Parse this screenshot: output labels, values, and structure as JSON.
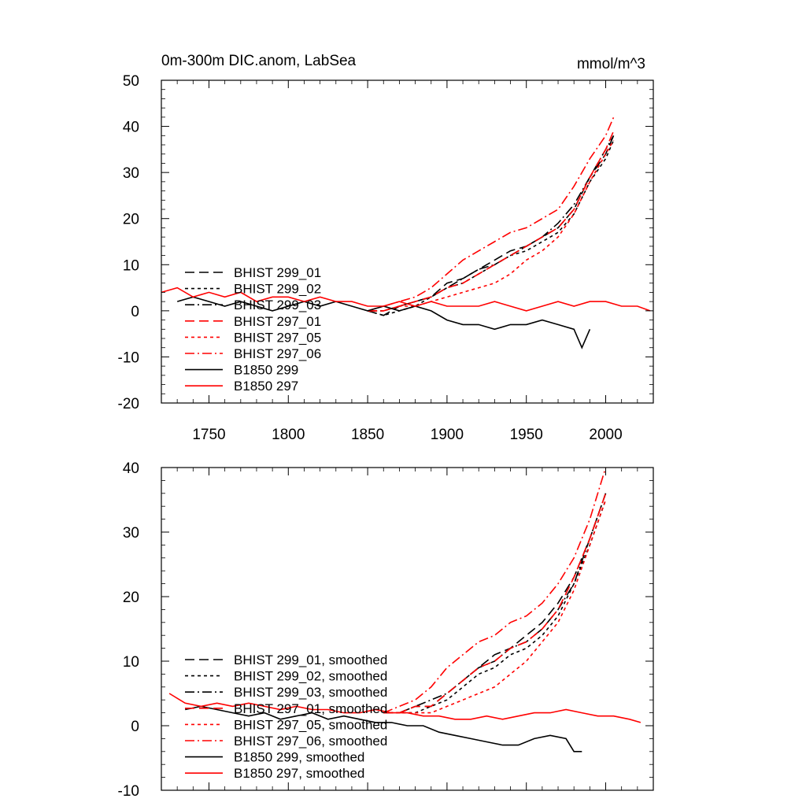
{
  "chart_data": [
    {
      "type": "line",
      "title": "0m-300m DIC.anom, LabSea",
      "units": "mmol/m^3",
      "xlim": [
        1720,
        2030
      ],
      "ylim": [
        -20,
        50
      ],
      "xticks": [
        {
          "v": 1750,
          "label": "1750"
        },
        {
          "v": 1800,
          "label": "1800"
        },
        {
          "v": 1850,
          "label": "1850"
        },
        {
          "v": 1900,
          "label": "1900"
        },
        {
          "v": 1950,
          "label": "1950"
        },
        {
          "v": 2000,
          "label": "2000"
        }
      ],
      "yticks": [
        {
          "v": -20,
          "label": "-20"
        },
        {
          "v": -10,
          "label": "-10"
        },
        {
          "v": 0,
          "label": "0"
        },
        {
          "v": 10,
          "label": "10"
        },
        {
          "v": 20,
          "label": "20"
        },
        {
          "v": 30,
          "label": "30"
        },
        {
          "v": 40,
          "label": "40"
        },
        {
          "v": 50,
          "label": "50"
        }
      ],
      "legend_position": "lower-left",
      "series": [
        {
          "name": "BHIST 299_01",
          "color": "#000000",
          "dash": "long-dash",
          "x": [
            1850,
            1860,
            1870,
            1880,
            1890,
            1900,
            1910,
            1920,
            1930,
            1940,
            1950,
            1960,
            1970,
            1980,
            1990,
            2000,
            2005
          ],
          "y": [
            0,
            -1,
            1,
            2,
            3,
            6,
            7,
            9,
            11,
            13,
            14,
            16,
            18,
            22,
            29,
            34,
            38
          ]
        },
        {
          "name": "BHIST 299_02",
          "color": "#000000",
          "dash": "short-dash",
          "x": [
            1850,
            1860,
            1870,
            1880,
            1890,
            1900,
            1910,
            1920,
            1930,
            1940,
            1950,
            1960,
            1970,
            1980,
            1990,
            2000,
            2005
          ],
          "y": [
            0,
            -1,
            0,
            1,
            3,
            5,
            6,
            8,
            10,
            12,
            13,
            15,
            17,
            21,
            28,
            33,
            37
          ]
        },
        {
          "name": "BHIST 299_03",
          "color": "#000000",
          "dash": "dash-dot",
          "x": [
            1850,
            1860,
            1870,
            1880,
            1890,
            1900,
            1910,
            1920,
            1930,
            1940,
            1950,
            1960,
            1970,
            1980,
            1990,
            2000,
            2005
          ],
          "y": [
            0,
            0,
            1,
            2,
            3,
            5,
            7,
            9,
            10,
            12,
            14,
            16,
            19,
            23,
            29,
            35,
            38
          ]
        },
        {
          "name": "BHIST 297_01",
          "color": "#ff0000",
          "dash": "long-dash",
          "x": [
            1850,
            1860,
            1870,
            1880,
            1890,
            1900,
            1910,
            1920,
            1930,
            1940,
            1950,
            1960,
            1970,
            1980,
            1990,
            2000,
            2005
          ],
          "y": [
            0,
            0,
            1,
            2,
            3,
            5,
            6,
            8,
            10,
            12,
            14,
            16,
            18,
            22,
            29,
            35,
            39
          ]
        },
        {
          "name": "BHIST 297_05",
          "color": "#ff0000",
          "dash": "short-dash",
          "x": [
            1850,
            1860,
            1870,
            1880,
            1890,
            1900,
            1910,
            1920,
            1930,
            1940,
            1950,
            1960,
            1970,
            1980,
            1990,
            2000,
            2005
          ],
          "y": [
            0,
            0,
            1,
            1,
            2,
            3,
            4,
            5,
            6,
            8,
            11,
            13,
            16,
            21,
            28,
            34,
            37
          ]
        },
        {
          "name": "BHIST 297_06",
          "color": "#ff0000",
          "dash": "dash-dot",
          "x": [
            1850,
            1860,
            1870,
            1880,
            1890,
            1900,
            1910,
            1920,
            1930,
            1940,
            1950,
            1960,
            1970,
            1980,
            1990,
            2000,
            2005
          ],
          "y": [
            0,
            1,
            2,
            3,
            5,
            8,
            11,
            13,
            15,
            17,
            18,
            20,
            22,
            27,
            33,
            38,
            42
          ]
        },
        {
          "name": "B1850 299",
          "color": "#000000",
          "dash": "solid",
          "x": [
            1730,
            1740,
            1750,
            1760,
            1770,
            1780,
            1790,
            1800,
            1810,
            1820,
            1830,
            1840,
            1850,
            1860,
            1870,
            1880,
            1890,
            1900,
            1910,
            1920,
            1930,
            1940,
            1950,
            1960,
            1970,
            1980,
            1985,
            1990
          ],
          "y": [
            2,
            3,
            2,
            1,
            2,
            1,
            0,
            1,
            2,
            1,
            2,
            1,
            0,
            1,
            0,
            1,
            0,
            -2,
            -3,
            -3,
            -4,
            -3,
            -3,
            -2,
            -3,
            -4,
            -8,
            -4
          ]
        },
        {
          "name": "B1850 297",
          "color": "#ff0000",
          "dash": "solid",
          "x": [
            1720,
            1730,
            1740,
            1750,
            1760,
            1770,
            1780,
            1790,
            1800,
            1810,
            1820,
            1830,
            1840,
            1850,
            1860,
            1870,
            1880,
            1890,
            1900,
            1910,
            1920,
            1930,
            1940,
            1950,
            1960,
            1970,
            1980,
            1990,
            2000,
            2010,
            2020,
            2028
          ],
          "y": [
            4,
            5,
            3,
            4,
            3,
            4,
            2,
            3,
            3,
            2,
            3,
            2,
            2,
            1,
            1,
            2,
            1,
            2,
            1,
            1,
            1,
            2,
            1,
            0,
            1,
            2,
            1,
            2,
            2,
            1,
            1,
            0
          ]
        }
      ]
    },
    {
      "type": "line",
      "xlim": [
        1720,
        2030
      ],
      "ylim": [
        -10,
        40
      ],
      "xticks": [
        {
          "v": 1750,
          "label": ""
        },
        {
          "v": 1800,
          "label": ""
        },
        {
          "v": 1850,
          "label": ""
        },
        {
          "v": 1900,
          "label": ""
        },
        {
          "v": 1950,
          "label": ""
        },
        {
          "v": 2000,
          "label": ""
        }
      ],
      "yticks": [
        {
          "v": -10,
          "label": "-10"
        },
        {
          "v": 0,
          "label": "0"
        },
        {
          "v": 10,
          "label": "10"
        },
        {
          "v": 20,
          "label": "20"
        },
        {
          "v": 30,
          "label": "30"
        },
        {
          "v": 40,
          "label": "40"
        }
      ],
      "legend_position": "lower-left",
      "series": [
        {
          "name": "BHIST 299_01, smoothed",
          "color": "#000000",
          "dash": "long-dash",
          "x": [
            1860,
            1870,
            1880,
            1890,
            1900,
            1910,
            1920,
            1930,
            1940,
            1950,
            1960,
            1970,
            1980,
            1990,
            2000
          ],
          "y": [
            2,
            2,
            3,
            3,
            5,
            7,
            9,
            11,
            12,
            14,
            16,
            19,
            23,
            29,
            36
          ]
        },
        {
          "name": "BHIST 299_02, smoothed",
          "color": "#000000",
          "dash": "short-dash",
          "x": [
            1860,
            1870,
            1880,
            1890,
            1900,
            1910,
            1920,
            1930,
            1940,
            1950,
            1960,
            1970,
            1980,
            1990,
            2000
          ],
          "y": [
            2,
            2,
            2,
            3,
            4,
            6,
            8,
            9,
            11,
            12,
            14,
            17,
            22,
            28,
            35
          ]
        },
        {
          "name": "BHIST 299_03, smoothed",
          "color": "#000000",
          "dash": "dash-dot",
          "x": [
            1860,
            1870,
            1880,
            1890,
            1900,
            1910,
            1920,
            1930,
            1940,
            1950,
            1960,
            1970,
            1980,
            1990,
            2000
          ],
          "y": [
            2,
            2,
            3,
            4,
            5,
            7,
            9,
            10,
            12,
            13,
            15,
            18,
            22,
            29,
            36
          ]
        },
        {
          "name": "BHIST 297_01, smoothed",
          "color": "#ff0000",
          "dash": "long-dash",
          "x": [
            1860,
            1870,
            1880,
            1890,
            1900,
            1910,
            1920,
            1930,
            1940,
            1950,
            1960,
            1970,
            1980,
            1990,
            2000
          ],
          "y": [
            2,
            2,
            3,
            3,
            5,
            7,
            9,
            10,
            12,
            13,
            15,
            18,
            23,
            29,
            36
          ]
        },
        {
          "name": "BHIST 297_05, smoothed",
          "color": "#ff0000",
          "dash": "short-dash",
          "x": [
            1860,
            1870,
            1880,
            1890,
            1900,
            1910,
            1920,
            1930,
            1940,
            1950,
            1960,
            1970,
            1980,
            1990,
            2000
          ],
          "y": [
            2,
            2,
            2,
            2,
            3,
            4,
            5,
            6,
            8,
            10,
            13,
            16,
            21,
            28,
            35
          ]
        },
        {
          "name": "BHIST 297_06, smoothed",
          "color": "#ff0000",
          "dash": "dash-dot",
          "x": [
            1860,
            1870,
            1880,
            1890,
            1900,
            1910,
            1920,
            1930,
            1940,
            1950,
            1960,
            1970,
            1980,
            1990,
            2000
          ],
          "y": [
            2,
            3,
            4,
            6,
            9,
            11,
            13,
            14,
            16,
            17,
            19,
            22,
            26,
            32,
            40
          ]
        },
        {
          "name": "B1850 299, smoothed",
          "color": "#000000",
          "dash": "solid",
          "x": [
            1735,
            1745,
            1755,
            1765,
            1775,
            1785,
            1795,
            1805,
            1815,
            1825,
            1835,
            1845,
            1855,
            1865,
            1875,
            1885,
            1895,
            1905,
            1915,
            1925,
            1935,
            1945,
            1955,
            1965,
            1975,
            1980,
            1985
          ],
          "y": [
            2.5,
            3,
            2.5,
            2,
            1.5,
            2,
            1,
            1.5,
            2,
            1,
            1.5,
            1,
            0.5,
            0.5,
            0,
            0,
            -1,
            -1.5,
            -2,
            -2.5,
            -3,
            -3,
            -2,
            -1.5,
            -2,
            -4,
            -4
          ]
        },
        {
          "name": "B1850 297, smoothed",
          "color": "#ff0000",
          "dash": "solid",
          "x": [
            1725,
            1735,
            1745,
            1755,
            1765,
            1775,
            1785,
            1795,
            1805,
            1815,
            1825,
            1835,
            1845,
            1855,
            1865,
            1875,
            1885,
            1895,
            1905,
            1915,
            1925,
            1935,
            1945,
            1955,
            1965,
            1975,
            1985,
            1995,
            2005,
            2015,
            2022
          ],
          "y": [
            5,
            3.5,
            3,
            3.5,
            3,
            3.5,
            3,
            2.5,
            3,
            2.5,
            2.5,
            2,
            2,
            2.5,
            2,
            2,
            1.5,
            1.5,
            1,
            1,
            1.5,
            1,
            1.5,
            2,
            2,
            2.5,
            2,
            1.5,
            1.5,
            1,
            0.5
          ]
        }
      ]
    }
  ]
}
